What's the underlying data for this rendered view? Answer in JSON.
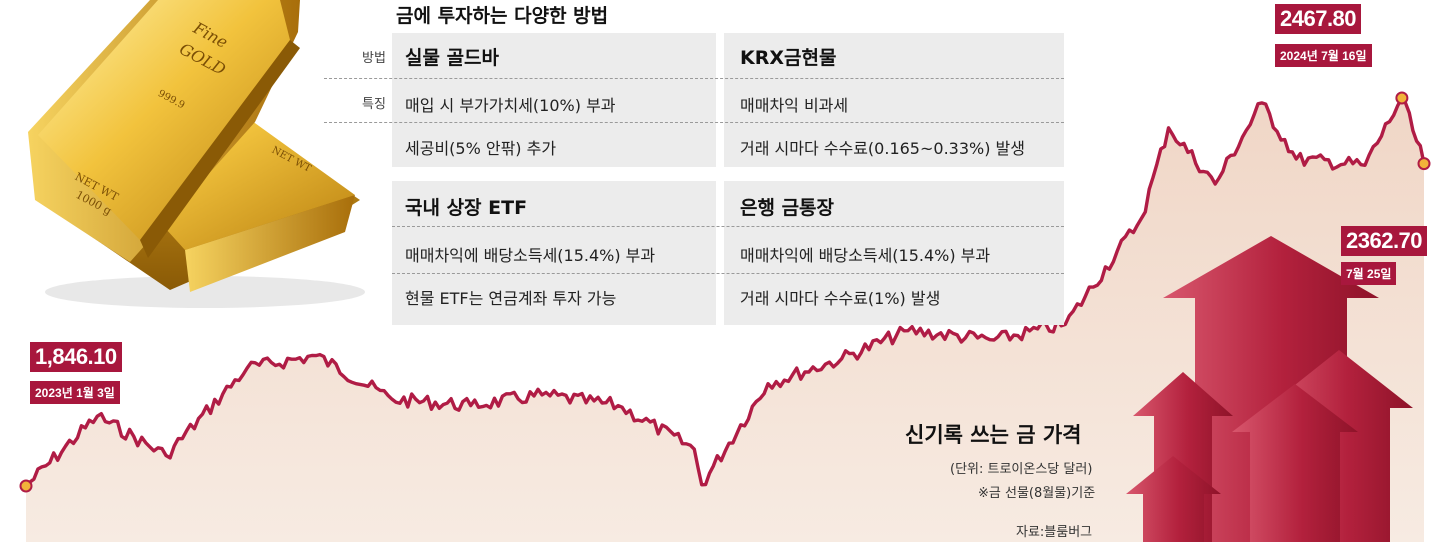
{
  "table": {
    "title": "금에 투자하는 다양한 방법",
    "row_labels": {
      "method": "방법",
      "feature": "특징"
    },
    "methods": [
      {
        "name": "실물 골드바",
        "features": [
          "매입 시 부가가치세(10%) 부과",
          "세공비(5% 안팎) 추가"
        ]
      },
      {
        "name": "KRX금현물",
        "features": [
          "매매차익 비과세",
          "거래 시마다 수수료(0.165~0.33%) 발생"
        ]
      },
      {
        "name": "국내 상장 ETF",
        "features": [
          "매매차익에 배당소득세(15.4%) 부과",
          "현물 ETF는 연금계좌 투자 가능"
        ]
      },
      {
        "name": "은행 금통장",
        "features": [
          "매매차익에 배당소득세(15.4%) 부과",
          "거래 시마다 수수료(1%) 발생"
        ]
      }
    ]
  },
  "goldbar": {
    "top_text": [
      "Fine",
      "GOLD",
      "999.9"
    ],
    "side_text": [
      "NET WT",
      "1000 g"
    ]
  },
  "chart_data": {
    "type": "line",
    "title": "신기록 쓰는 금 가격",
    "unit_note": "(단위: 트로이온스당 달러)",
    "basis_note": "※금 선물(8월물)기준",
    "source": "자료:블룸버그",
    "x": [
      "2023-01-03",
      "2023-02-01",
      "2023-03-01",
      "2023-04-03",
      "2023-05-01",
      "2023-06-01",
      "2023-07-03",
      "2023-08-01",
      "2023-09-01",
      "2023-10-02",
      "2023-10-05",
      "2023-11-01",
      "2023-12-01",
      "2023-12-28",
      "2024-02-01",
      "2024-03-01",
      "2024-04-01",
      "2024-04-12",
      "2024-05-01",
      "2024-05-20",
      "2024-06-03",
      "2024-07-01",
      "2024-07-16",
      "2024-07-25"
    ],
    "values": [
      1846.1,
      1958,
      1895,
      2035,
      2055,
      1985,
      1975,
      1992,
      1975,
      1905,
      1848,
      2010,
      2050,
      2095,
      2080,
      2105,
      2275,
      2420,
      2330,
      2460,
      2370,
      2360,
      2467.8,
      2362.7
    ],
    "series_color": "#b01c45",
    "points": [
      {
        "label": "1,846.10",
        "date": "2023년 1월 3일"
      },
      {
        "label": "2467.80",
        "date": "2024년 7월 16일"
      },
      {
        "label": "2362.70",
        "date": "7월 25일"
      }
    ]
  }
}
